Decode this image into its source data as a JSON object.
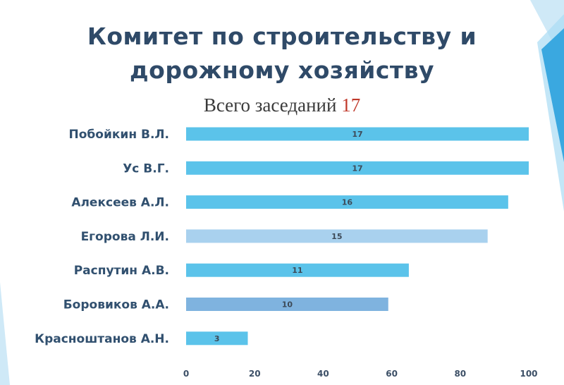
{
  "slide": {
    "title_line1": "Комитет по строительству и",
    "title_line2": "дорожному хозяйству",
    "subtitle_text": "Всего заседаний",
    "subtitle_number": "17",
    "accent_color": "#3aa8e0"
  },
  "chart_data": {
    "type": "bar",
    "orientation": "horizontal",
    "categories": [
      "Побойкин В.Л.",
      "Ус В.Г.",
      "Алексеев А.Л.",
      "Егорова Л.И.",
      "Распутин А.В.",
      "Боровиков А.А.",
      "Красноштанов А.Н."
    ],
    "values": [
      17,
      17,
      16,
      15,
      11,
      10,
      3
    ],
    "percent_of_total": [
      100,
      100,
      94,
      88,
      65,
      59,
      18
    ],
    "data_labels": [
      "17",
      "17",
      "16",
      "15",
      "11",
      "10",
      "3"
    ],
    "bar_colors": [
      "#5bc3ea",
      "#5bc3ea",
      "#5bc3ea",
      "#a9d1ee",
      "#5bc3ea",
      "#7fb3df",
      "#5bc3ea"
    ],
    "xlim": [
      0,
      100
    ],
    "xticks": [
      "0",
      "20",
      "40",
      "60",
      "80",
      "100"
    ],
    "grid": false,
    "legend": "none"
  }
}
